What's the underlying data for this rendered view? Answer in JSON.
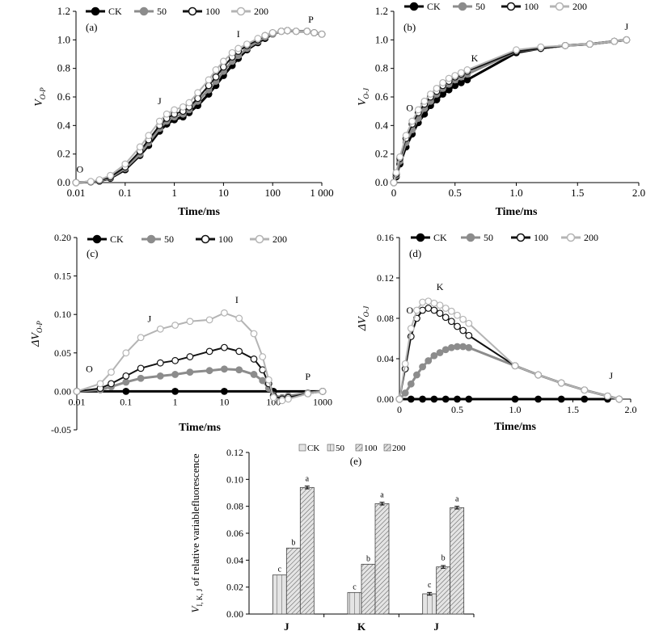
{
  "colors": {
    "CK": "#000000",
    "s50": "#8c8c8c",
    "s100": "#111111",
    "s200": "#b4b4b4",
    "bar_fill": "#e4e4e4",
    "axis": "#000000"
  },
  "legend_series": [
    "CK",
    "50",
    "100",
    "200"
  ],
  "chart_data": [
    {
      "id": "a",
      "type": "line",
      "panel_label": "(a)",
      "ylabel_main": "V",
      "ylabel_sub": "O-P",
      "xlabel": "Time/ms",
      "xscale": "log",
      "xlim": [
        0.01,
        1000
      ],
      "ylim": [
        0,
        1.2
      ],
      "xticks": [
        0.01,
        0.1,
        1,
        10,
        100,
        1000
      ],
      "xticklabels": [
        "0.01",
        "0.1",
        "1",
        "10",
        "100",
        "1 000"
      ],
      "yticks": [
        0,
        0.2,
        0.4,
        0.6,
        0.8,
        1.0,
        1.2
      ],
      "yticklabels": [
        "0.0",
        "0.2",
        "0.4",
        "0.6",
        "0.8",
        "1.0",
        "1.2"
      ],
      "grid": false,
      "legend_position": "top",
      "annotations": [
        {
          "text": "O",
          "x": 0.012,
          "y": 0.07
        },
        {
          "text": "J",
          "x": 0.5,
          "y": 0.55
        },
        {
          "text": "I",
          "x": 20,
          "y": 1.02
        },
        {
          "text": "P",
          "x": 600,
          "y": 1.12
        }
      ],
      "series": [
        {
          "name": "CK",
          "x": [
            0.01,
            0.02,
            0.03,
            0.05,
            0.1,
            0.2,
            0.3,
            0.5,
            0.7,
            1,
            1.5,
            2,
            3,
            5,
            7,
            10,
            15,
            20,
            30,
            50,
            70,
            100,
            150,
            200,
            300,
            500,
            700,
            1000
          ],
          "y": [
            0,
            0.005,
            0.01,
            0.03,
            0.09,
            0.19,
            0.26,
            0.36,
            0.41,
            0.44,
            0.46,
            0.49,
            0.54,
            0.62,
            0.68,
            0.75,
            0.82,
            0.87,
            0.93,
            0.98,
            1.01,
            1.04,
            1.06,
            1.065,
            1.06,
            1.06,
            1.05,
            1.04
          ]
        },
        {
          "name": "50",
          "x": [
            0.01,
            0.02,
            0.03,
            0.05,
            0.1,
            0.2,
            0.3,
            0.5,
            0.7,
            1,
            1.5,
            2,
            3,
            5,
            7,
            10,
            15,
            20,
            30,
            50,
            70,
            100,
            150,
            200,
            300,
            500,
            700,
            1000
          ],
          "y": [
            0,
            0.005,
            0.012,
            0.035,
            0.1,
            0.2,
            0.28,
            0.38,
            0.43,
            0.46,
            0.48,
            0.51,
            0.57,
            0.65,
            0.71,
            0.78,
            0.85,
            0.89,
            0.94,
            0.99,
            1.02,
            1.04,
            1.06,
            1.065,
            1.06,
            1.06,
            1.05,
            1.04
          ]
        },
        {
          "name": "100",
          "x": [
            0.01,
            0.02,
            0.03,
            0.05,
            0.1,
            0.2,
            0.3,
            0.5,
            0.7,
            1,
            1.5,
            2,
            3,
            5,
            7,
            10,
            15,
            20,
            30,
            50,
            70,
            100,
            150,
            200,
            300,
            500,
            700,
            1000
          ],
          "y": [
            0,
            0.006,
            0.014,
            0.04,
            0.11,
            0.22,
            0.3,
            0.4,
            0.45,
            0.48,
            0.5,
            0.53,
            0.59,
            0.68,
            0.74,
            0.81,
            0.88,
            0.92,
            0.96,
            1.0,
            1.03,
            1.05,
            1.06,
            1.065,
            1.06,
            1.06,
            1.05,
            1.04
          ]
        },
        {
          "name": "200",
          "x": [
            0.01,
            0.02,
            0.03,
            0.05,
            0.1,
            0.2,
            0.3,
            0.5,
            0.7,
            1,
            1.5,
            2,
            3,
            5,
            7,
            10,
            15,
            20,
            30,
            50,
            70,
            100,
            150,
            200,
            300,
            500,
            700,
            1000
          ],
          "y": [
            0,
            0.008,
            0.02,
            0.05,
            0.13,
            0.25,
            0.33,
            0.43,
            0.48,
            0.51,
            0.53,
            0.56,
            0.63,
            0.72,
            0.79,
            0.85,
            0.91,
            0.94,
            0.97,
            1.01,
            1.03,
            1.05,
            1.06,
            1.065,
            1.06,
            1.06,
            1.05,
            1.04
          ]
        }
      ]
    },
    {
      "id": "b",
      "type": "line",
      "panel_label": "(b)",
      "ylabel_main": "V",
      "ylabel_sub": "O-J",
      "xlabel": "Time/ms",
      "xscale": "linear",
      "xlim": [
        0,
        2.0
      ],
      "ylim": [
        0,
        1.2
      ],
      "xticks": [
        0,
        0.5,
        1.0,
        1.5,
        2.0
      ],
      "xticklabels": [
        "0",
        "0.5",
        "1.0",
        "1.5",
        "2.0"
      ],
      "yticks": [
        0,
        0.2,
        0.4,
        0.6,
        0.8,
        1.0,
        1.2
      ],
      "yticklabels": [
        "0.0",
        "0.2",
        "0.4",
        "0.6",
        "0.8",
        "1.0",
        "1.2"
      ],
      "grid": false,
      "legend_position": "top",
      "annotations": [
        {
          "text": "O",
          "x": 0.13,
          "y": 0.5
        },
        {
          "text": "K",
          "x": 0.66,
          "y": 0.85
        },
        {
          "text": "J",
          "x": 1.9,
          "y": 1.07
        }
      ],
      "series": [
        {
          "name": "CK",
          "x": [
            0,
            0.02,
            0.05,
            0.1,
            0.15,
            0.2,
            0.25,
            0.3,
            0.35,
            0.4,
            0.45,
            0.5,
            0.55,
            0.6,
            1.0,
            1.2,
            1.4,
            1.6,
            1.8,
            1.9
          ],
          "y": [
            0,
            0.04,
            0.13,
            0.25,
            0.34,
            0.42,
            0.48,
            0.54,
            0.58,
            0.62,
            0.65,
            0.68,
            0.7,
            0.72,
            0.91,
            0.94,
            0.96,
            0.97,
            0.99,
            1.0
          ]
        },
        {
          "name": "50",
          "x": [
            0,
            0.02,
            0.05,
            0.1,
            0.15,
            0.2,
            0.25,
            0.3,
            0.35,
            0.4,
            0.45,
            0.5,
            0.55,
            0.6,
            1.0,
            1.2,
            1.4,
            1.6,
            1.8,
            1.9
          ],
          "y": [
            0,
            0.05,
            0.15,
            0.28,
            0.37,
            0.45,
            0.52,
            0.57,
            0.62,
            0.66,
            0.69,
            0.72,
            0.74,
            0.76,
            0.92,
            0.94,
            0.96,
            0.97,
            0.99,
            1.0
          ]
        },
        {
          "name": "100",
          "x": [
            0,
            0.02,
            0.05,
            0.1,
            0.15,
            0.2,
            0.25,
            0.3,
            0.35,
            0.4,
            0.45,
            0.5,
            0.55,
            0.6,
            1.0,
            1.2,
            1.4,
            1.6,
            1.8,
            1.9
          ],
          "y": [
            0,
            0.06,
            0.17,
            0.31,
            0.41,
            0.49,
            0.55,
            0.6,
            0.64,
            0.68,
            0.71,
            0.74,
            0.76,
            0.78,
            0.92,
            0.94,
            0.96,
            0.97,
            0.99,
            1.0
          ]
        },
        {
          "name": "200",
          "x": [
            0,
            0.02,
            0.05,
            0.1,
            0.15,
            0.2,
            0.25,
            0.3,
            0.35,
            0.4,
            0.45,
            0.5,
            0.55,
            0.6,
            1.0,
            1.2,
            1.4,
            1.6,
            1.8,
            1.9
          ],
          "y": [
            0,
            0.07,
            0.18,
            0.33,
            0.43,
            0.51,
            0.57,
            0.62,
            0.66,
            0.7,
            0.73,
            0.75,
            0.77,
            0.79,
            0.93,
            0.95,
            0.96,
            0.97,
            0.99,
            1.0
          ]
        }
      ]
    },
    {
      "id": "c",
      "type": "line",
      "panel_label": "(c)",
      "ylabel_main": "ΔV",
      "ylabel_sub": "O-P",
      "xlabel": "Time/ms",
      "xscale": "log",
      "xlim": [
        0.01,
        1000
      ],
      "ylim": [
        -0.05,
        0.2
      ],
      "xticks": [
        0.01,
        0.1,
        1,
        10,
        100,
        1000
      ],
      "xticklabels": [
        "0.01",
        "0.1",
        "1",
        "10",
        "100",
        "1000"
      ],
      "yticks": [
        -0.05,
        0,
        0.05,
        0.1,
        0.15,
        0.2
      ],
      "yticklabels": [
        "-0.05",
        "0.00",
        "0.05",
        "0.10",
        "0.15",
        "0.20"
      ],
      "grid": false,
      "legend_position": "top",
      "annotations": [
        {
          "text": "O",
          "x": 0.018,
          "y": 0.025
        },
        {
          "text": "J",
          "x": 0.3,
          "y": 0.09
        },
        {
          "text": "I",
          "x": 18,
          "y": 0.115
        },
        {
          "text": "P",
          "x": 500,
          "y": 0.015
        }
      ],
      "series": [
        {
          "name": "CK",
          "x": [
            0.01,
            0.1,
            1,
            10,
            100,
            1000
          ],
          "y": [
            0,
            0,
            0,
            0,
            0,
            0
          ]
        },
        {
          "name": "50",
          "x": [
            0.01,
            0.03,
            0.05,
            0.1,
            0.2,
            0.5,
            1,
            2,
            5,
            10,
            20,
            40,
            60,
            80,
            100,
            150,
            200,
            500,
            1000
          ],
          "y": [
            0,
            0.002,
            0.006,
            0.012,
            0.017,
            0.02,
            0.022,
            0.025,
            0.027,
            0.029,
            0.028,
            0.022,
            0.014,
            0.004,
            -0.005,
            -0.008,
            -0.006,
            -0.002,
            0
          ]
        },
        {
          "name": "100",
          "x": [
            0.01,
            0.03,
            0.05,
            0.1,
            0.2,
            0.5,
            1,
            2,
            5,
            10,
            20,
            40,
            60,
            80,
            100,
            150,
            200,
            500,
            1000
          ],
          "y": [
            0,
            0.004,
            0.01,
            0.02,
            0.03,
            0.037,
            0.04,
            0.045,
            0.052,
            0.057,
            0.052,
            0.042,
            0.028,
            0.01,
            -0.006,
            -0.01,
            -0.008,
            -0.003,
            0
          ]
        },
        {
          "name": "200",
          "x": [
            0.01,
            0.03,
            0.05,
            0.1,
            0.2,
            0.5,
            1,
            2,
            5,
            10,
            20,
            40,
            60,
            80,
            100,
            150,
            200,
            500,
            1000
          ],
          "y": [
            0,
            0.01,
            0.025,
            0.05,
            0.07,
            0.081,
            0.086,
            0.091,
            0.093,
            0.102,
            0.095,
            0.075,
            0.045,
            0.015,
            -0.008,
            -0.012,
            -0.01,
            -0.003,
            0
          ]
        }
      ]
    },
    {
      "id": "d",
      "type": "line",
      "panel_label": "(d)",
      "ylabel_main": "ΔV",
      "ylabel_sub": "O-J",
      "xlabel": "Time/ms",
      "xscale": "linear",
      "xlim": [
        0,
        2.0
      ],
      "ylim": [
        0,
        0.16
      ],
      "xticks": [
        0,
        0.5,
        1.0,
        1.5,
        2.0
      ],
      "xticklabels": [
        "0",
        "0.5",
        "1.0",
        "1.5",
        "2.0"
      ],
      "yticks": [
        0,
        0.04,
        0.08,
        0.12,
        0.16
      ],
      "yticklabels": [
        "0.00",
        "0.04",
        "0.08",
        "0.12",
        "0.16"
      ],
      "grid": false,
      "legend_position": "top",
      "annotations": [
        {
          "text": "O",
          "x": 0.09,
          "y": 0.085
        },
        {
          "text": "K",
          "x": 0.35,
          "y": 0.108
        },
        {
          "text": "J",
          "x": 1.83,
          "y": 0.02
        }
      ],
      "series": [
        {
          "name": "CK",
          "x": [
            0,
            0.1,
            0.2,
            0.3,
            0.4,
            0.5,
            0.6,
            1.0,
            1.2,
            1.4,
            1.6,
            1.8
          ],
          "y": [
            0,
            0,
            0,
            0,
            0,
            0,
            0,
            0,
            0,
            0,
            0,
            0
          ]
        },
        {
          "name": "50",
          "x": [
            0,
            0.05,
            0.1,
            0.15,
            0.2,
            0.25,
            0.3,
            0.35,
            0.4,
            0.45,
            0.5,
            0.55,
            0.6,
            1.0,
            1.2,
            1.4,
            1.6,
            1.8,
            1.9
          ],
          "y": [
            0,
            0.006,
            0.015,
            0.024,
            0.032,
            0.038,
            0.043,
            0.046,
            0.049,
            0.051,
            0.052,
            0.052,
            0.051,
            0.033,
            0.024,
            0.016,
            0.009,
            0.003,
            0
          ]
        },
        {
          "name": "100",
          "x": [
            0,
            0.05,
            0.1,
            0.15,
            0.2,
            0.25,
            0.3,
            0.35,
            0.4,
            0.45,
            0.5,
            0.55,
            0.6,
            1.0,
            1.2,
            1.4,
            1.6,
            1.8,
            1.9
          ],
          "y": [
            0,
            0.03,
            0.062,
            0.08,
            0.088,
            0.09,
            0.088,
            0.085,
            0.081,
            0.077,
            0.072,
            0.068,
            0.063,
            0.033,
            0.024,
            0.016,
            0.009,
            0.003,
            0
          ]
        },
        {
          "name": "200",
          "x": [
            0,
            0.05,
            0.1,
            0.15,
            0.2,
            0.25,
            0.3,
            0.35,
            0.4,
            0.45,
            0.5,
            0.55,
            0.6,
            1.0,
            1.2,
            1.4,
            1.6,
            1.8,
            1.9
          ],
          "y": [
            0,
            0.035,
            0.07,
            0.088,
            0.096,
            0.097,
            0.095,
            0.093,
            0.09,
            0.087,
            0.083,
            0.079,
            0.075,
            0.033,
            0.024,
            0.016,
            0.009,
            0.003,
            0
          ]
        }
      ]
    },
    {
      "id": "e",
      "type": "bar",
      "panel_label": "(e)",
      "ylabel_main": "V",
      "ylabel_sub": "I, K, J",
      "ylabel_rest": " of relative variablefluorescence",
      "categories": [
        "J",
        "K",
        "J"
      ],
      "ylim": [
        0,
        0.12
      ],
      "yticks": [
        0,
        0.02,
        0.04,
        0.06,
        0.08,
        0.1,
        0.12
      ],
      "yticklabels": [
        "0.00",
        "0.02",
        "0.04",
        "0.06",
        "0.08",
        "0.10",
        "0.12"
      ],
      "grid": false,
      "legend_position": "top",
      "series": [
        {
          "name": "CK",
          "values": [
            0,
            0,
            0
          ],
          "letters": [
            "",
            "",
            ""
          ],
          "errors": [
            0,
            0,
            0
          ]
        },
        {
          "name": "50",
          "values": [
            0.029,
            0.016,
            0.015
          ],
          "letters": [
            "c",
            "c",
            "c"
          ],
          "errors": [
            0,
            0,
            0.001
          ]
        },
        {
          "name": "100",
          "values": [
            0.049,
            0.037,
            0.035
          ],
          "letters": [
            "b",
            "b",
            "b"
          ],
          "errors": [
            0,
            0,
            0.001
          ]
        },
        {
          "name": "200",
          "values": [
            0.094,
            0.082,
            0.079
          ],
          "letters": [
            "a",
            "a",
            "a"
          ],
          "errors": [
            0.001,
            0.001,
            0.001
          ]
        }
      ]
    }
  ]
}
